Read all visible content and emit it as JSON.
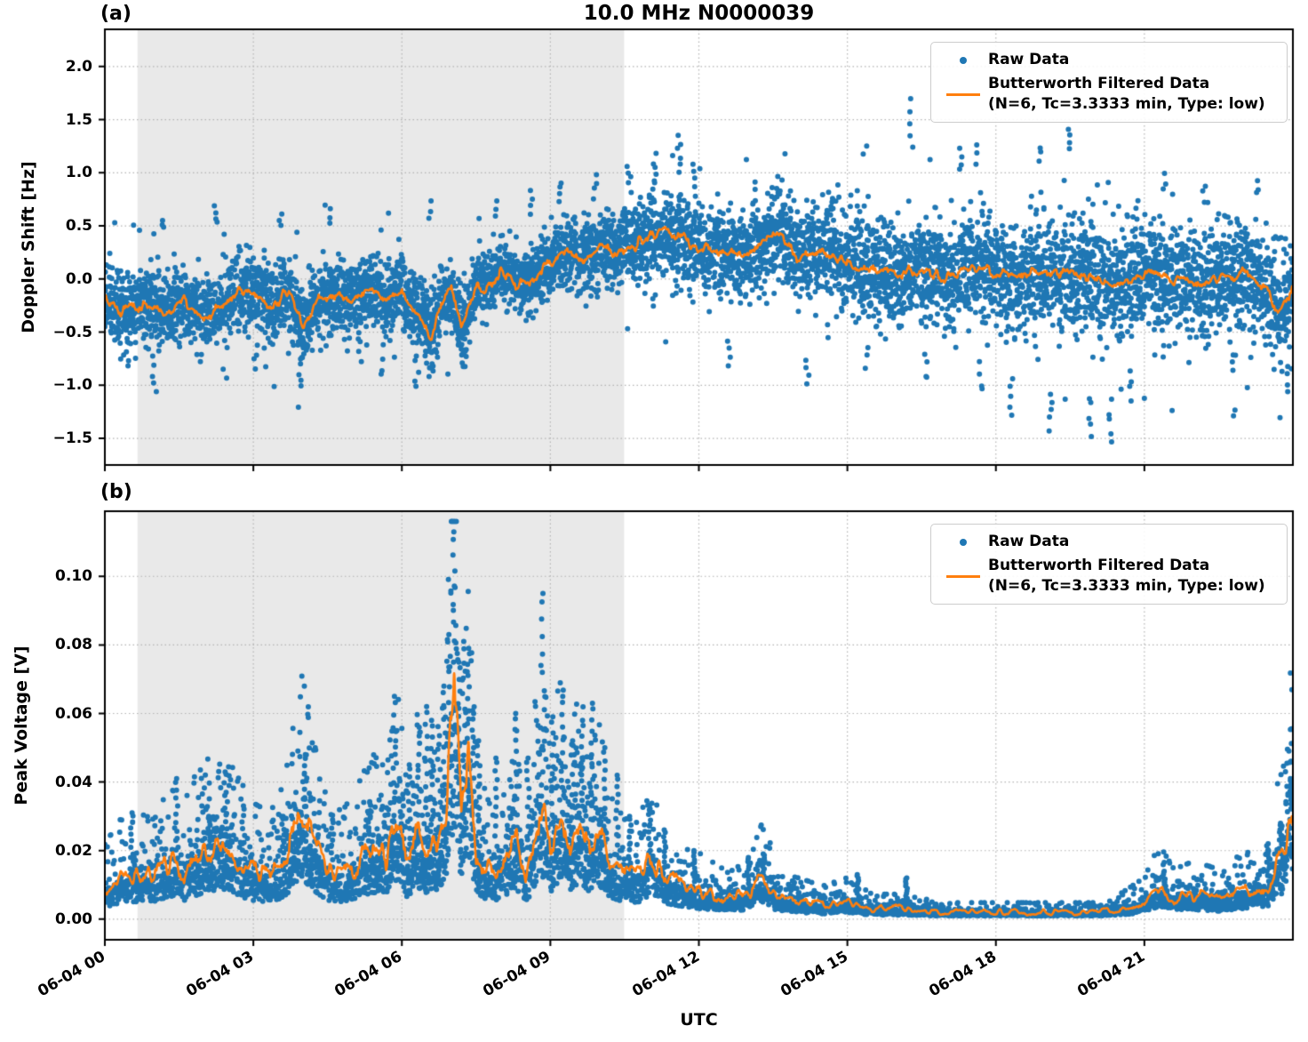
{
  "figure": {
    "title": "10.0 MHz N0000039",
    "xlabel": "UTC",
    "colors": {
      "raw": "#1f77b4",
      "filtered": "#ff7f0e",
      "shading": "#e9e9e9",
      "grid": "#b3b3b3",
      "axis": "#000000"
    }
  },
  "legend": {
    "items": [
      {
        "marker": "dot",
        "lines": [
          "Raw Data"
        ]
      },
      {
        "marker": "line",
        "lines": [
          "Butterworth Filtered Data",
          "(N=6, Tc=3.3333 min, Type: low)"
        ]
      }
    ]
  },
  "chart_data": [
    {
      "type": "scatter",
      "panel_label": "(a)",
      "title": "10.0 MHz N0000039",
      "ylabel": "Doppler Shift [Hz]",
      "x_axis": {
        "label": "UTC",
        "range_hours": [
          0,
          24
        ],
        "tick_hours": [
          0,
          3,
          6,
          9,
          12,
          15,
          18,
          21
        ],
        "tick_labels": [
          "06-04 00",
          "06-04 03",
          "06-04 06",
          "06-04 09",
          "06-04 12",
          "06-04 15",
          "06-04 18",
          "06-04 21"
        ]
      },
      "y_axis": {
        "lim": [
          -1.75,
          2.35
        ],
        "tick_values": [
          2.0,
          1.5,
          1.0,
          0.5,
          0.0,
          -0.5,
          -1.0,
          -1.5
        ],
        "tick_labels": [
          "2.0",
          "1.5",
          "1.0",
          "0.5",
          "0.0",
          "−0.5",
          "−1.0",
          "−1.5"
        ]
      },
      "grid": true,
      "legend_position": "upper right",
      "shaded_region": {
        "t_start": 0.66,
        "t_end": 10.49
      },
      "series": [
        {
          "name": "Raw Data",
          "type": "scatter",
          "color": "#1f77b4",
          "center": "filtered",
          "envelope_sd": {
            "t": [
              0,
              6,
              8,
              10,
              11,
              13,
              14,
              15,
              16,
              24
            ],
            "sd": [
              0.17,
              0.17,
              0.15,
              0.17,
              0.2,
              0.2,
              0.22,
              0.24,
              0.25,
              0.26
            ]
          },
          "outlier_streaks": [
            [
              0.45,
              -0.85,
              -0.55,
              4
            ],
            [
              0.95,
              -1.0,
              -0.7,
              4
            ],
            [
              1.15,
              0.45,
              0.6,
              3
            ],
            [
              2.25,
              0.5,
              0.72,
              4
            ],
            [
              3.05,
              -0.85,
              -0.6,
              4
            ],
            [
              3.55,
              0.5,
              0.65,
              3
            ],
            [
              3.95,
              -1.05,
              -0.7,
              5
            ],
            [
              4.55,
              0.5,
              0.68,
              3
            ],
            [
              5.15,
              -0.8,
              -0.55,
              3
            ],
            [
              5.6,
              -0.95,
              -0.6,
              4
            ],
            [
              6.3,
              -1.05,
              -0.65,
              5
            ],
            [
              6.55,
              0.55,
              0.8,
              3
            ],
            [
              7.3,
              -0.9,
              -0.6,
              3
            ],
            [
              7.9,
              0.55,
              0.75,
              3
            ],
            [
              8.6,
              0.6,
              0.85,
              4
            ],
            [
              9.2,
              0.7,
              0.95,
              4
            ],
            [
              9.9,
              0.75,
              1.0,
              4
            ],
            [
              10.6,
              0.8,
              1.05,
              4
            ],
            [
              11.1,
              0.9,
              1.2,
              5
            ],
            [
              11.6,
              1.0,
              1.37,
              6
            ],
            [
              11.9,
              0.85,
              1.1,
              4
            ],
            [
              12.6,
              -0.85,
              -0.6,
              3
            ],
            [
              13.1,
              0.7,
              0.95,
              3
            ],
            [
              13.6,
              0.75,
              1.0,
              3
            ],
            [
              14.2,
              -1.0,
              -0.7,
              4
            ],
            [
              14.8,
              0.7,
              0.9,
              3
            ],
            [
              15.4,
              -0.85,
              -0.6,
              3
            ],
            [
              16.3,
              1.2,
              1.78,
              5
            ],
            [
              16.6,
              -0.95,
              -0.65,
              3
            ],
            [
              17.3,
              1.0,
              1.25,
              4
            ],
            [
              17.6,
              1.05,
              1.3,
              3
            ],
            [
              17.7,
              -1.1,
              -0.75,
              4
            ],
            [
              18.3,
              -1.3,
              -0.9,
              5
            ],
            [
              18.9,
              1.1,
              1.3,
              3
            ],
            [
              19.1,
              -1.45,
              -1.0,
              5
            ],
            [
              19.5,
              1.2,
              1.45,
              4
            ],
            [
              19.9,
              -1.5,
              -1.05,
              5
            ],
            [
              20.3,
              -1.55,
              -1.1,
              5
            ],
            [
              20.7,
              -1.15,
              -0.8,
              4
            ],
            [
              21.4,
              0.8,
              1.05,
              3
            ],
            [
              22.2,
              0.7,
              0.95,
              3
            ],
            [
              22.8,
              -0.9,
              -0.65,
              3
            ],
            [
              23.3,
              0.75,
              1.0,
              3
            ],
            [
              23.9,
              -1.1,
              -0.8,
              4
            ]
          ]
        },
        {
          "name": "Butterworth Filtered Data\n(N=6, Tc=3.3333 min, Type: low)",
          "type": "line",
          "color": "#ff7f0e",
          "wiggle_amp": 0.05,
          "t": [
            0,
            0.3,
            0.7,
            1.2,
            1.6,
            2.0,
            2.4,
            2.7,
            3.0,
            3.4,
            3.7,
            4.0,
            4.3,
            4.7,
            5.0,
            5.4,
            5.7,
            6.0,
            6.3,
            6.6,
            6.8,
            7.0,
            7.2,
            7.5,
            7.8,
            8.0,
            8.3,
            8.6,
            9.0,
            9.3,
            9.6,
            10.0,
            10.4,
            10.8,
            11.2,
            11.6,
            12.0,
            12.4,
            12.8,
            13.2,
            13.6,
            14.0,
            14.5,
            15.0,
            15.5,
            16.0,
            16.5,
            17.0,
            17.5,
            18.0,
            18.5,
            19.0,
            19.5,
            20.0,
            20.5,
            21.0,
            21.5,
            22.0,
            22.5,
            23.0,
            23.4,
            23.7,
            24.0
          ],
          "v": [
            -0.15,
            -0.3,
            -0.25,
            -0.3,
            -0.2,
            -0.35,
            -0.25,
            -0.1,
            -0.15,
            -0.25,
            -0.1,
            -0.45,
            -0.2,
            -0.15,
            -0.2,
            -0.1,
            -0.2,
            -0.1,
            -0.3,
            -0.55,
            -0.2,
            -0.1,
            -0.45,
            -0.1,
            -0.05,
            0.1,
            -0.05,
            0.0,
            0.15,
            0.25,
            0.2,
            0.3,
            0.25,
            0.35,
            0.45,
            0.4,
            0.3,
            0.25,
            0.2,
            0.3,
            0.45,
            0.2,
            0.25,
            0.15,
            0.1,
            0.05,
            0.1,
            0.0,
            0.1,
            0.05,
            0.0,
            0.1,
            0.05,
            0.0,
            -0.05,
            0.05,
            0.0,
            -0.05,
            0.0,
            0.05,
            -0.05,
            -0.3,
            -0.1
          ]
        }
      ]
    },
    {
      "type": "scatter",
      "panel_label": "(b)",
      "ylabel": "Peak Voltage [V]",
      "x_axis": {
        "label": "UTC",
        "range_hours": [
          0,
          24
        ],
        "tick_hours": [
          0,
          3,
          6,
          9,
          12,
          15,
          18,
          21
        ],
        "tick_labels": [
          "06-04 00",
          "06-04 03",
          "06-04 06",
          "06-04 09",
          "06-04 12",
          "06-04 15",
          "06-04 18",
          "06-04 21"
        ]
      },
      "y_axis": {
        "lim": [
          -0.006,
          0.119
        ],
        "tick_values": [
          0.1,
          0.08,
          0.06,
          0.04,
          0.02,
          0.0
        ],
        "tick_labels": [
          "0.10",
          "0.08",
          "0.06",
          "0.04",
          "0.02",
          "0.00"
        ]
      },
      "grid": true,
      "legend_position": "upper right",
      "shaded_region": {
        "t_start": 0.66,
        "t_end": 10.49
      },
      "series": [
        {
          "name": "Raw Data",
          "type": "scatter",
          "color": "#1f77b4",
          "center": "filtered",
          "lognormal_sigma": 0.52,
          "spikes": [
            [
              0.55,
              0.031
            ],
            [
              1.45,
              0.041
            ],
            [
              2.1,
              0.03
            ],
            [
              2.45,
              0.037
            ],
            [
              2.8,
              0.033
            ],
            [
              3.6,
              0.03
            ],
            [
              4.05,
              0.048
            ],
            [
              4.6,
              0.029
            ],
            [
              5.35,
              0.034
            ],
            [
              5.85,
              0.065
            ],
            [
              6.15,
              0.045
            ],
            [
              6.35,
              0.056
            ],
            [
              6.5,
              0.062
            ],
            [
              6.6,
              0.058
            ],
            [
              6.75,
              0.051
            ],
            [
              6.85,
              0.068
            ],
            [
              6.95,
              0.083
            ],
            [
              7.05,
              0.113
            ],
            [
              7.15,
              0.075
            ],
            [
              7.25,
              0.081
            ],
            [
              7.35,
              0.079
            ],
            [
              7.45,
              0.06
            ],
            [
              7.55,
              0.052
            ],
            [
              7.9,
              0.047
            ],
            [
              8.3,
              0.06
            ],
            [
              8.55,
              0.047
            ],
            [
              8.85,
              0.095
            ],
            [
              9.05,
              0.059
            ],
            [
              9.25,
              0.065
            ],
            [
              9.45,
              0.052
            ],
            [
              9.65,
              0.058
            ],
            [
              9.85,
              0.063
            ],
            [
              10.1,
              0.05
            ],
            [
              10.35,
              0.042
            ],
            [
              10.6,
              0.03
            ],
            [
              11.0,
              0.033
            ],
            [
              11.3,
              0.026
            ],
            [
              11.9,
              0.02
            ],
            [
              13.0,
              0.018
            ],
            [
              13.3,
              0.019
            ],
            [
              15.2,
              0.013
            ],
            [
              16.2,
              0.012
            ],
            [
              21.4,
              0.014
            ],
            [
              23.5,
              0.022
            ],
            [
              23.75,
              0.028
            ],
            [
              23.95,
              0.041
            ]
          ]
        },
        {
          "name": "Butterworth Filtered Data\n(N=6, Tc=3.3333 min, Type: low)",
          "type": "line",
          "color": "#ff7f0e",
          "wiggle_rel": 0.18,
          "t": [
            0,
            0.3,
            0.6,
            1.0,
            1.3,
            1.6,
            2.0,
            2.3,
            2.6,
            3.0,
            3.3,
            3.6,
            4.0,
            4.2,
            4.5,
            4.8,
            5.1,
            5.4,
            5.7,
            5.9,
            6.1,
            6.3,
            6.5,
            6.7,
            6.9,
            7.05,
            7.2,
            7.35,
            7.5,
            7.7,
            7.9,
            8.1,
            8.3,
            8.5,
            8.8,
            9.0,
            9.2,
            9.4,
            9.6,
            9.8,
            10.0,
            10.2,
            10.5,
            10.8,
            11.0,
            11.3,
            11.6,
            12.0,
            12.5,
            13.0,
            13.3,
            13.6,
            14.0,
            14.5,
            15.0,
            15.5,
            16.0,
            17.0,
            18.0,
            19.0,
            20.0,
            20.5,
            21.0,
            21.3,
            21.6,
            22.0,
            22.5,
            23.0,
            23.5,
            23.8,
            24.0
          ],
          "v": [
            0.009,
            0.012,
            0.013,
            0.012,
            0.016,
            0.014,
            0.02,
            0.022,
            0.018,
            0.014,
            0.013,
            0.016,
            0.03,
            0.022,
            0.014,
            0.013,
            0.016,
            0.02,
            0.018,
            0.03,
            0.016,
            0.025,
            0.018,
            0.022,
            0.03,
            0.071,
            0.03,
            0.05,
            0.02,
            0.015,
            0.012,
            0.018,
            0.024,
            0.011,
            0.035,
            0.02,
            0.03,
            0.022,
            0.028,
            0.02,
            0.025,
            0.015,
            0.012,
            0.013,
            0.018,
            0.012,
            0.01,
            0.008,
            0.006,
            0.007,
            0.012,
            0.006,
            0.005,
            0.004,
            0.005,
            0.003,
            0.003,
            0.002,
            0.002,
            0.002,
            0.002,
            0.003,
            0.005,
            0.009,
            0.006,
            0.007,
            0.006,
            0.008,
            0.01,
            0.02,
            0.035
          ]
        }
      ]
    }
  ]
}
